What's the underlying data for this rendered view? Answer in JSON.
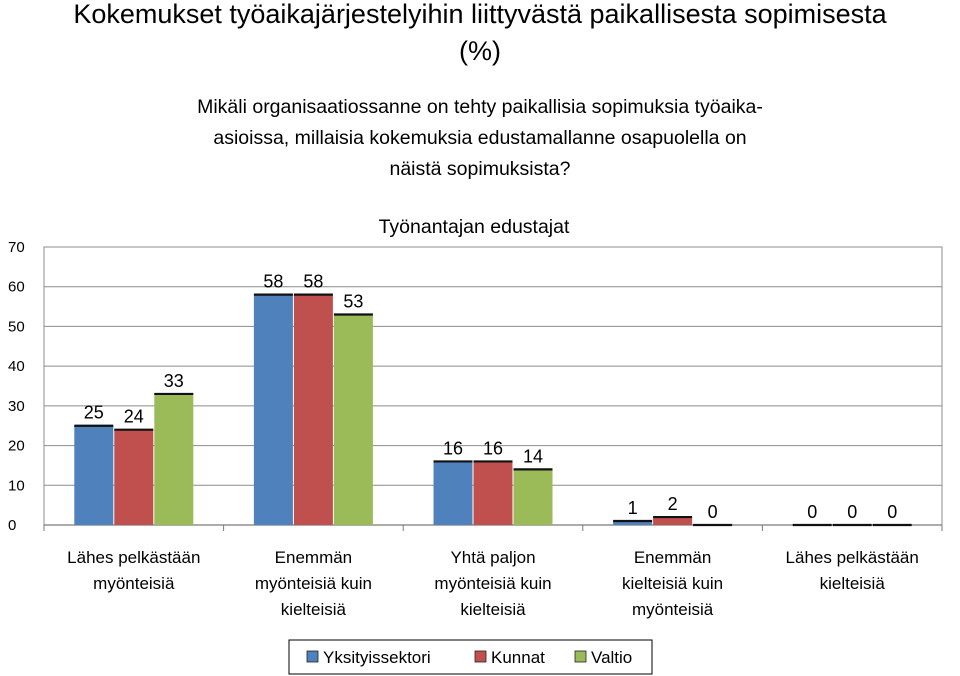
{
  "slide": {
    "title_line1": "Kokemukset työaikajärjestelyihin liittyvästä paikallisesta sopimisesta",
    "title_line2": "(%)"
  },
  "question": {
    "line1": "Mikäli organisaatiossanne on tehty paikallisia sopimuksia työaika-",
    "line2": "asioissa, millaisia kokemuksia edustamallanne osapuolella on",
    "line3": "näistä sopimuksista?"
  },
  "chart_data": {
    "type": "bar",
    "title": "Työnantajan edustajat",
    "xlabel": "",
    "ylabel": "",
    "ylim": [
      0,
      70
    ],
    "yticks": [
      0,
      10,
      20,
      30,
      40,
      50,
      60,
      70
    ],
    "grid": true,
    "legend_position": "bottom",
    "categories": [
      [
        "Lähes pelkästään",
        "myönteisiä"
      ],
      [
        "Enemmän",
        "myönteisiä kuin",
        "kielteisiä"
      ],
      [
        "Yhtä paljon",
        "myönteisiä kuin",
        "kielteisiä"
      ],
      [
        "Enemmän",
        "kielteisiä kuin",
        "myönteisiä"
      ],
      [
        "Lähes pelkästään",
        "kielteisiä"
      ]
    ],
    "series": [
      {
        "name": "Yksityissektori",
        "color": "#4F81BD",
        "values": [
          25,
          58,
          16,
          1,
          0
        ],
        "labels": [
          "25",
          "58",
          "16",
          "1",
          "0"
        ]
      },
      {
        "name": "Kunnat",
        "color": "#C0504D",
        "values": [
          24,
          58,
          16,
          2,
          0
        ],
        "labels": [
          "24",
          "58",
          "16",
          "2",
          "0"
        ]
      },
      {
        "name": "Valtio",
        "color": "#9BBB59",
        "values": [
          33,
          53,
          14,
          0,
          0
        ],
        "labels": [
          "33",
          "53",
          "14",
          "0",
          "0"
        ]
      }
    ]
  }
}
